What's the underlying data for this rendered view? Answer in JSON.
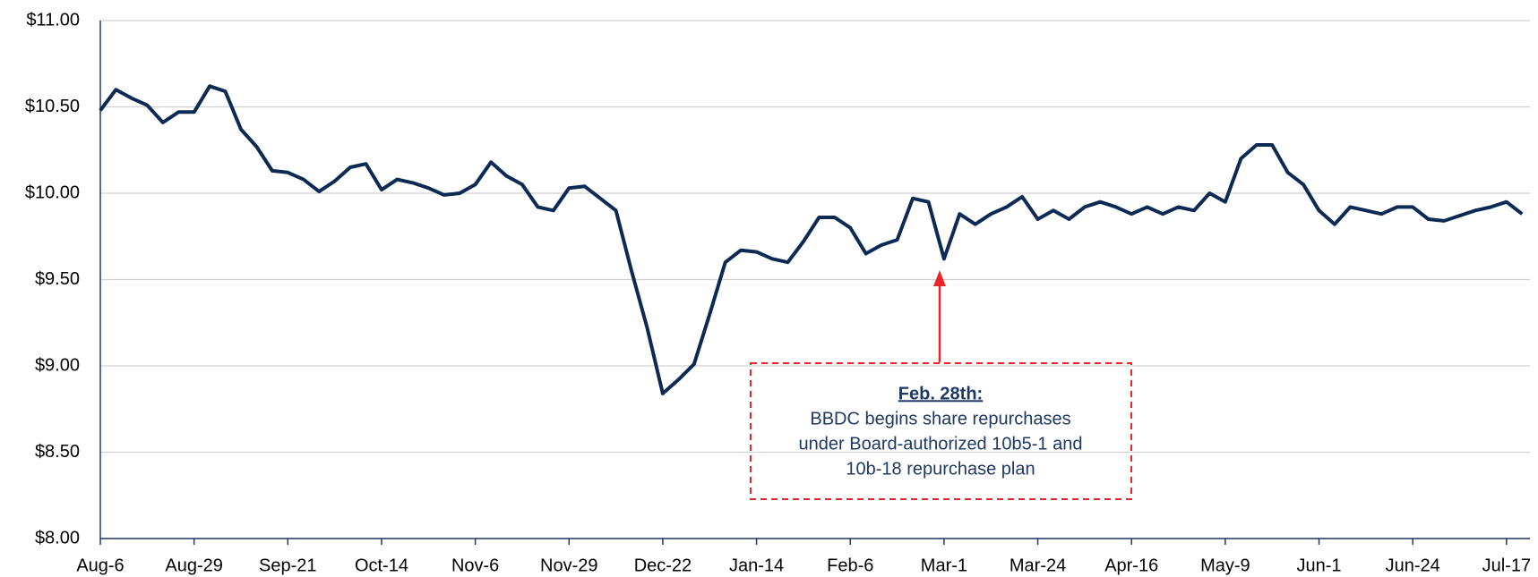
{
  "chart_data": {
    "type": "line",
    "categories": [
      "Aug-6",
      null,
      null,
      null,
      null,
      null,
      "Aug-29",
      null,
      null,
      null,
      null,
      null,
      "Sep-21",
      null,
      null,
      null,
      null,
      null,
      "Oct-14",
      null,
      null,
      null,
      null,
      null,
      "Nov-6",
      null,
      null,
      null,
      null,
      null,
      "Nov-29",
      null,
      null,
      null,
      null,
      null,
      "Dec-22",
      null,
      null,
      null,
      null,
      null,
      "Jan-14",
      null,
      null,
      null,
      null,
      null,
      "Feb-6",
      null,
      null,
      null,
      null,
      null,
      "Mar-1",
      null,
      null,
      null,
      null,
      null,
      "Mar-24",
      null,
      null,
      null,
      null,
      null,
      "Apr-16",
      null,
      null,
      null,
      null,
      null,
      "May-9",
      null,
      null,
      null,
      null,
      null,
      "Jun-1",
      null,
      null,
      null,
      null,
      null,
      "Jun-24",
      null,
      null,
      null,
      null,
      null,
      "Jul-17",
      null
    ],
    "values": [
      10.48,
      10.6,
      10.55,
      10.51,
      10.41,
      10.47,
      10.47,
      10.62,
      10.59,
      10.37,
      10.27,
      10.13,
      10.12,
      10.08,
      10.01,
      10.07,
      10.15,
      10.17,
      10.02,
      10.08,
      10.06,
      10.03,
      9.99,
      10.0,
      10.05,
      10.18,
      10.1,
      10.05,
      9.92,
      9.9,
      10.03,
      10.04,
      9.97,
      9.9,
      9.55,
      9.22,
      8.84,
      8.92,
      9.01,
      9.3,
      9.6,
      9.67,
      9.66,
      9.62,
      9.6,
      9.72,
      9.86,
      9.86,
      9.8,
      9.65,
      9.7,
      9.73,
      9.97,
      9.95,
      9.62,
      9.88,
      9.82,
      9.88,
      9.92,
      9.98,
      9.85,
      9.9,
      9.85,
      9.92,
      9.95,
      9.92,
      9.88,
      9.92,
      9.88,
      9.92,
      9.9,
      10.0,
      9.95,
      10.2,
      10.28,
      10.28,
      10.12,
      10.05,
      9.9,
      9.82,
      9.92,
      9.9,
      9.88,
      9.92,
      9.92,
      9.85,
      9.84,
      9.87,
      9.9,
      9.92,
      9.95,
      9.88
    ],
    "color": "#0d2a54",
    "ylim": [
      8,
      11
    ],
    "yticks": [
      {
        "value": 8,
        "label": "$8.00"
      },
      {
        "value": 8.5,
        "label": "$8.50"
      },
      {
        "value": 9,
        "label": "$9.00"
      },
      {
        "value": 9.5,
        "label": "$9.50"
      },
      {
        "value": 10,
        "label": "$10.00"
      },
      {
        "value": 10.5,
        "label": "$10.50"
      },
      {
        "value": 11,
        "label": "$11.00"
      }
    ],
    "grid": true,
    "annotation": {
      "title": "Feb. 28th:",
      "lines": [
        "BBDC begins share repurchases",
        "under Board-authorized 10b5-1 and",
        "10b-18 repurchase plan"
      ]
    }
  }
}
